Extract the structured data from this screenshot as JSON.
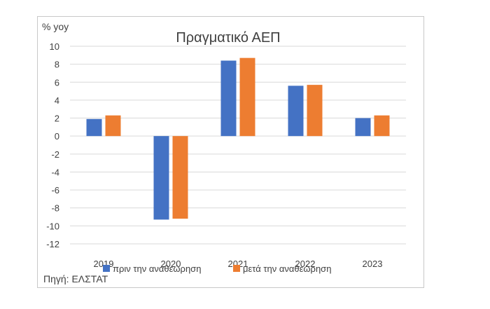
{
  "chart_data": {
    "type": "bar",
    "title": "Πραγματικό ΑΕΠ",
    "ylabel": "% yoy",
    "xlabel": "",
    "categories": [
      "2019",
      "2020",
      "2021",
      "2022",
      "2023"
    ],
    "series": [
      {
        "name": "πριν την αναθεώρηση",
        "color": "#4472C4",
        "values": [
          1.9,
          -9.3,
          8.4,
          5.6,
          2.0
        ]
      },
      {
        "name": "μετά την αναθεώρηση",
        "color": "#ED7D31",
        "values": [
          2.3,
          -9.2,
          8.7,
          5.7,
          2.3
        ]
      }
    ],
    "ylim": [
      -12,
      10
    ],
    "yticks": [
      "10",
      "8",
      "6",
      "4",
      "2",
      "0",
      "-2",
      "-4",
      "-6",
      "-8",
      "-10",
      "-12"
    ],
    "grid": true,
    "legend_position": "bottom",
    "source": "Πηγή: ΕΛΣΤΑΤ"
  }
}
